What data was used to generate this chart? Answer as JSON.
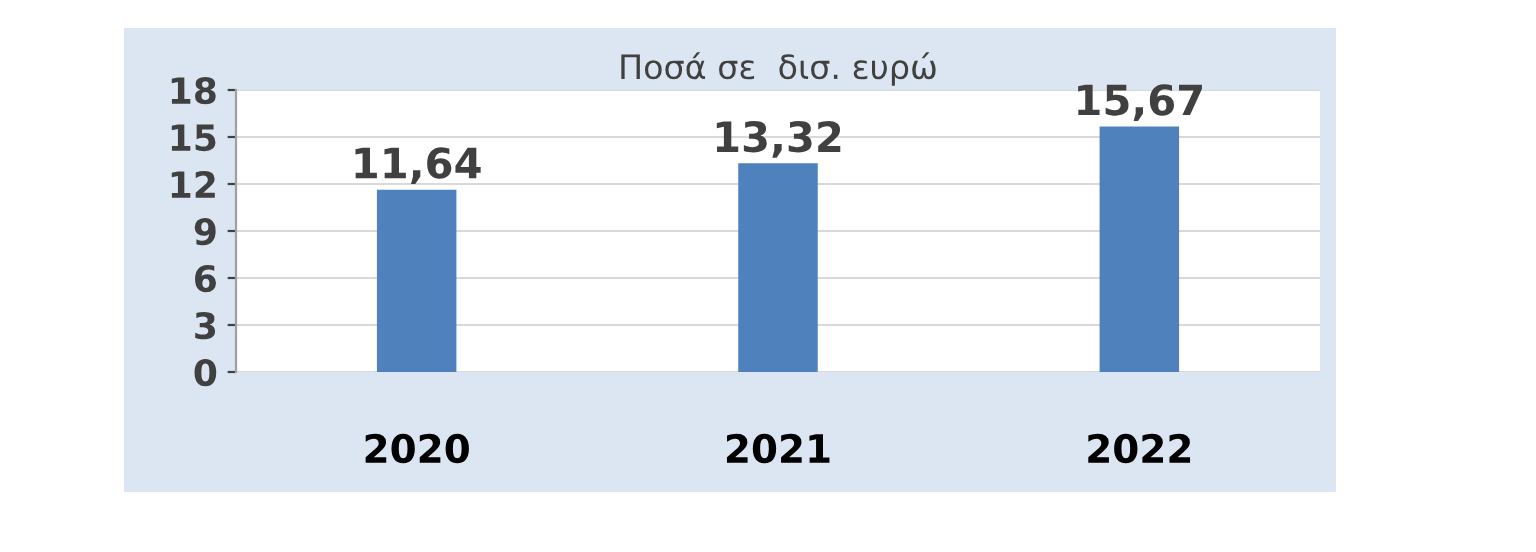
{
  "chart_data": {
    "type": "bar",
    "title": "Ποσά σε  δισ. ευρώ",
    "categories": [
      "2020",
      "2021",
      "2022"
    ],
    "values": [
      11.64,
      13.32,
      15.67
    ],
    "value_labels": [
      "11,64",
      "13,32",
      "15,67"
    ],
    "color": "#4f81bd",
    "ylim": [
      0,
      18
    ],
    "yticks": [
      0,
      3,
      6,
      9,
      12,
      15,
      18
    ],
    "grid": "y"
  }
}
